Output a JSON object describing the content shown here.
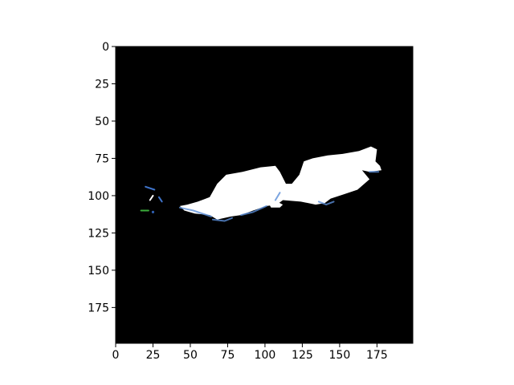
{
  "chart_data": {
    "type": "image",
    "xlim": [
      0,
      199
    ],
    "ylim": [
      199,
      0
    ],
    "x_ticks": [
      0,
      25,
      50,
      75,
      100,
      125,
      150,
      175
    ],
    "y_ticks": [
      0,
      25,
      50,
      75,
      100,
      125,
      150,
      175
    ],
    "x_tick_labels": [
      "0",
      "25",
      "50",
      "75",
      "100",
      "125",
      "150",
      "175"
    ],
    "y_tick_labels": [
      "0",
      "25",
      "50",
      "75",
      "100",
      "125",
      "150",
      "175"
    ],
    "background_color": "#000000",
    "foreground_color": "#ffffff",
    "bright_region_outline": [
      [
        43,
        107
      ],
      [
        48,
        106
      ],
      [
        55,
        104
      ],
      [
        63,
        101
      ],
      [
        68,
        92
      ],
      [
        74,
        86
      ],
      [
        85,
        84
      ],
      [
        97,
        81
      ],
      [
        107,
        80
      ],
      [
        110,
        84
      ],
      [
        114,
        92
      ],
      [
        118,
        92
      ],
      [
        123,
        86
      ],
      [
        126,
        77
      ],
      [
        132,
        75
      ],
      [
        142,
        73
      ],
      [
        152,
        72
      ],
      [
        163,
        70
      ],
      [
        171,
        67
      ],
      [
        175,
        69
      ],
      [
        174,
        77
      ],
      [
        177,
        80
      ],
      [
        178,
        83
      ],
      [
        170,
        84
      ],
      [
        165,
        83
      ],
      [
        170,
        89
      ],
      [
        162,
        96
      ],
      [
        153,
        99
      ],
      [
        144,
        102
      ],
      [
        140,
        105
      ],
      [
        134,
        106
      ],
      [
        124,
        104
      ],
      [
        112,
        103
      ],
      [
        108,
        106
      ],
      [
        101,
        107
      ],
      [
        92,
        110
      ],
      [
        84,
        113
      ],
      [
        77,
        114
      ],
      [
        68,
        116
      ],
      [
        63,
        113
      ],
      [
        53,
        112
      ],
      [
        46,
        110
      ]
    ],
    "bright_region_blob": [
      [
        103,
        106
      ],
      [
        108,
        104
      ],
      [
        112,
        106
      ],
      [
        110,
        108
      ],
      [
        104,
        108
      ]
    ],
    "blue_edge_segments": [
      [
        [
          43,
          108
        ],
        [
          52,
          110
        ],
        [
          64,
          114
        ]
      ],
      [
        [
          65,
          116
        ],
        [
          73,
          117
        ],
        [
          78,
          115
        ]
      ],
      [
        [
          84,
          113
        ],
        [
          92,
          111
        ],
        [
          101,
          107
        ]
      ],
      [
        [
          107,
          103
        ],
        [
          110,
          98
        ]
      ],
      [
        [
          136,
          104
        ],
        [
          141,
          106
        ],
        [
          146,
          104
        ]
      ],
      [
        [
          170,
          84
        ],
        [
          176,
          84
        ]
      ]
    ],
    "left_artifacts": [
      {
        "kind": "blue-line",
        "points": [
          [
            20,
            94
          ],
          [
            26,
            96
          ]
        ]
      },
      {
        "kind": "blue-line",
        "points": [
          [
            29,
            101
          ],
          [
            31,
            104
          ]
        ]
      },
      {
        "kind": "blue-dot",
        "at": [
          25,
          111
        ]
      },
      {
        "kind": "green-line",
        "points": [
          [
            17,
            110
          ],
          [
            22,
            110
          ]
        ]
      },
      {
        "kind": "white-line",
        "points": [
          [
            23,
            103
          ],
          [
            25,
            100
          ]
        ]
      }
    ]
  }
}
